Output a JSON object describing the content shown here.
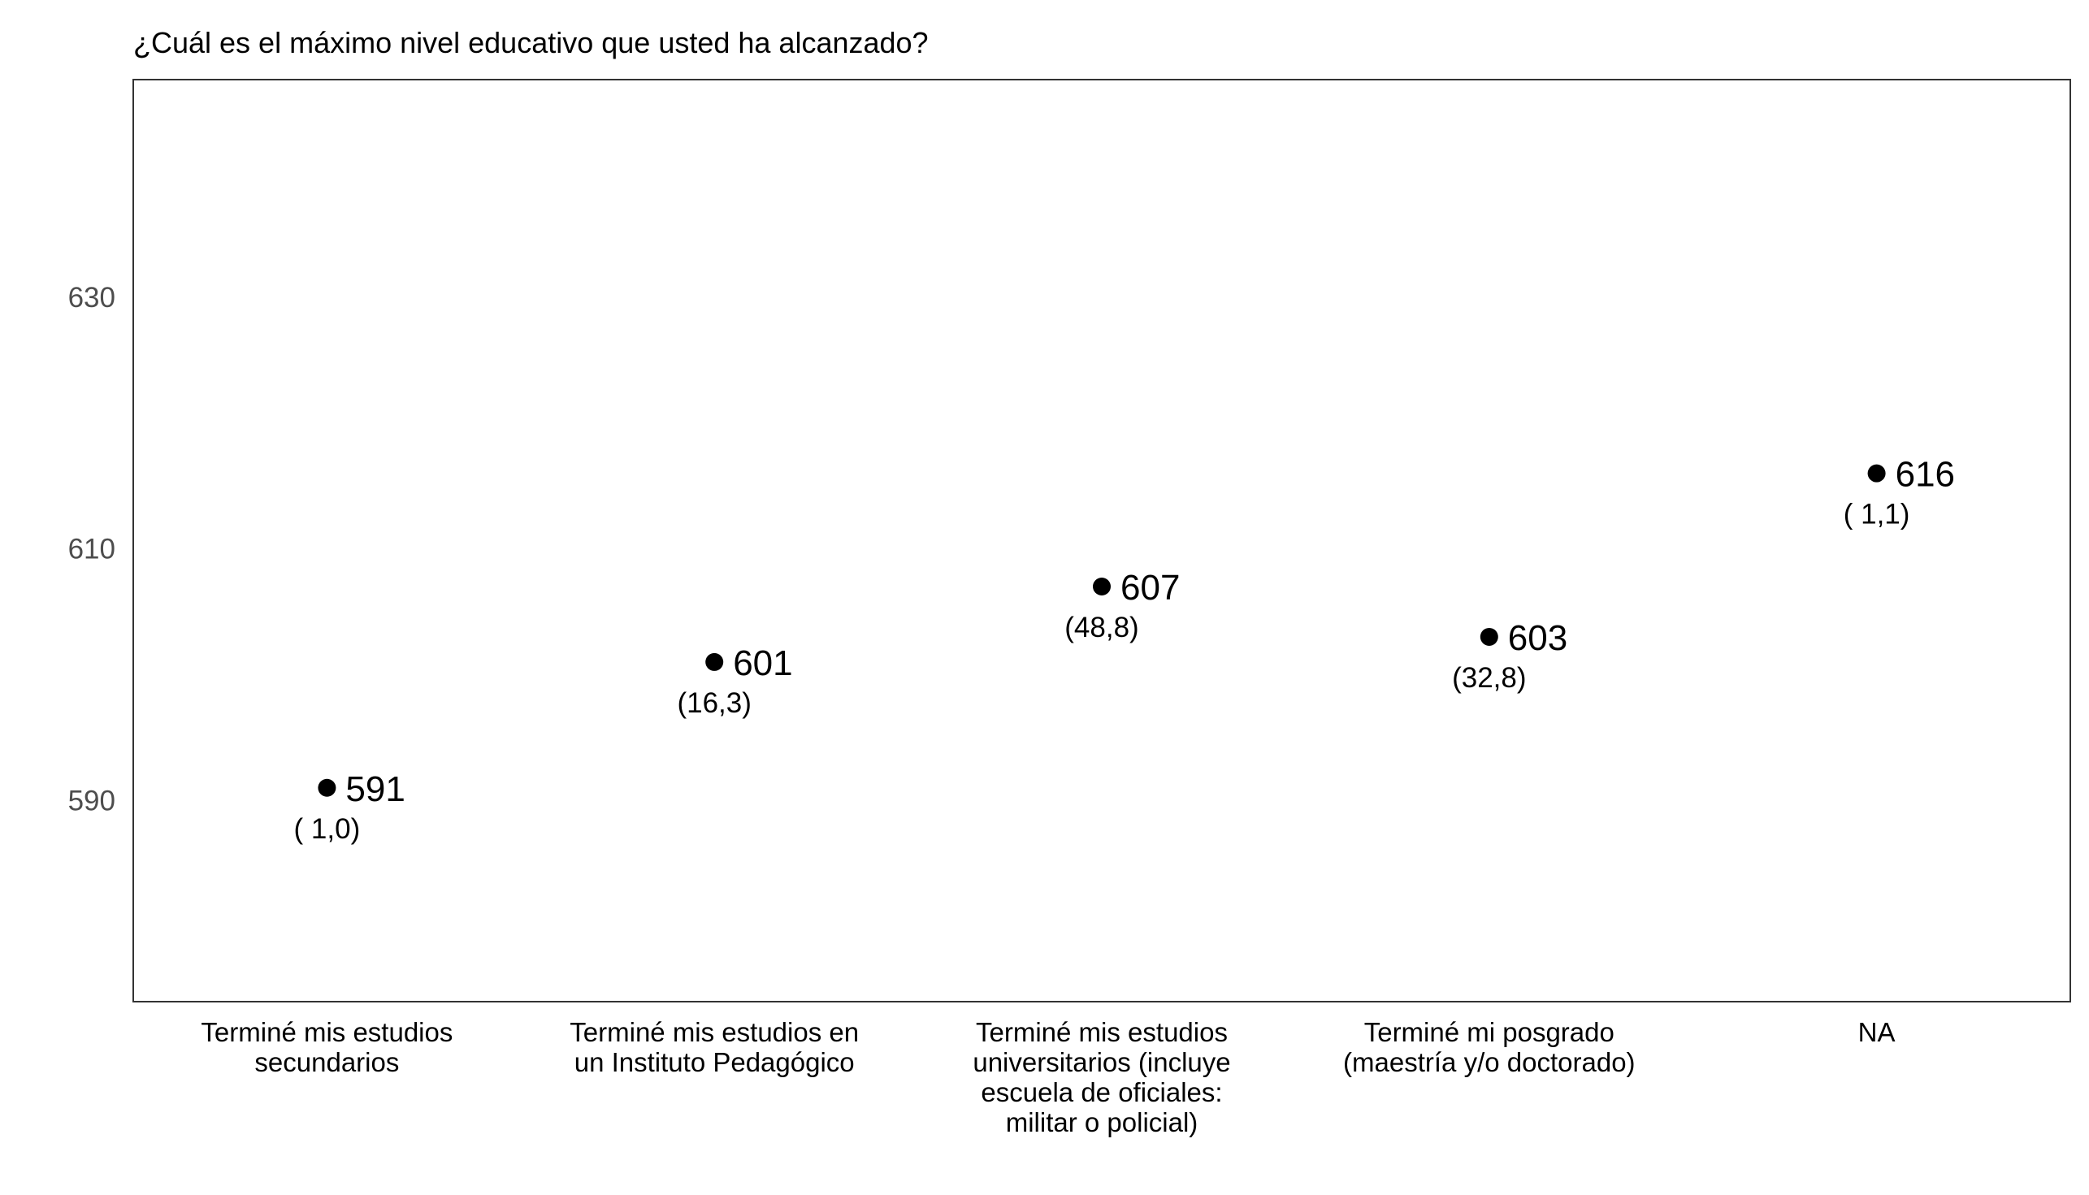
{
  "chart_data": {
    "type": "scatter",
    "title": "¿Cuál es el máximo nivel educativo que usted ha alcanzado?",
    "xlabel": "",
    "ylabel": "",
    "categories": [
      [
        "Terminé mis estudios",
        "secundarios"
      ],
      [
        "Terminé mis estudios en",
        "un Instituto Pedagógico"
      ],
      [
        "Terminé mis estudios",
        "universitarios (incluye",
        "escuela de oficiales:",
        "militar o policial)"
      ],
      [
        "Terminé mi posgrado",
        "(maestría y/o doctorado)"
      ],
      [
        "NA"
      ]
    ],
    "values": [
      591,
      601,
      607,
      603,
      616
    ],
    "value_labels": [
      "591",
      "601",
      "607",
      "603",
      "616"
    ],
    "percent_labels": [
      "( 1,0)",
      "(16,3)",
      "(48,8)",
      "(32,8)",
      "( 1,1)"
    ],
    "yticks": [
      590,
      610,
      630
    ],
    "ylim": [
      574,
      647.3
    ],
    "grid": false,
    "point_color": "#000000"
  }
}
